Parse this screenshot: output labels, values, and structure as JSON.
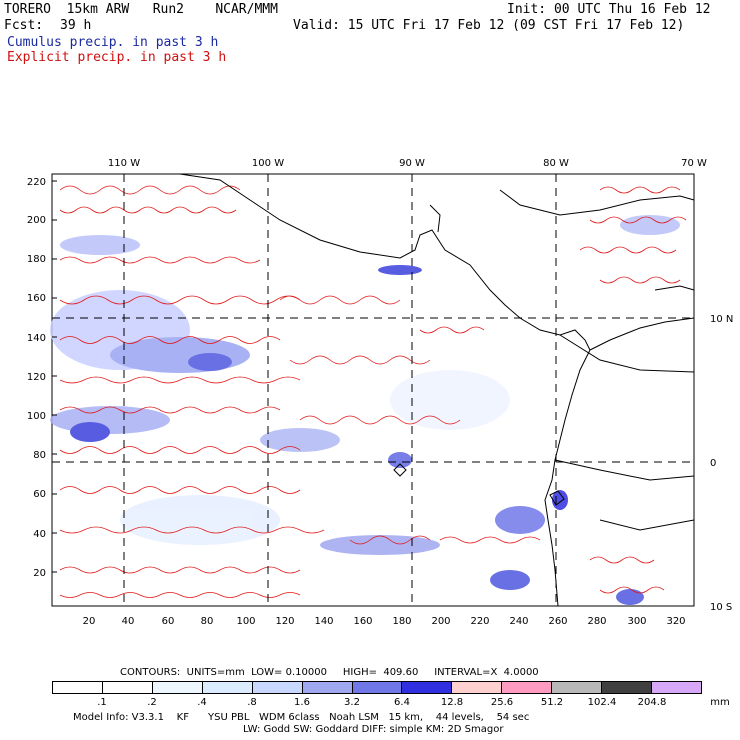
{
  "header": {
    "model": "TORERO  15km ARW   Run2    NCAR/MMM",
    "init": "Init: 00 UTC Thu 16 Feb 12",
    "fcst_label": "Fcst:",
    "fcst_value": "39 h",
    "valid": "Valid: 15 UTC Fri 17 Feb 12 (09 CST Fri 17 Feb 12)",
    "cumulus": "Cumulus precip. in past 3 h",
    "explicit": "Explicit precip. in past 3 h"
  },
  "map": {
    "lon_labels": [
      "110 W",
      "100 W",
      "90 W",
      "80 W",
      "70 W"
    ],
    "lat_labels": [
      "10 N",
      "0",
      "10 S"
    ],
    "y_ticks": [
      "220",
      "200",
      "180",
      "160",
      "140",
      "120",
      "100",
      "80",
      "60",
      "40",
      "20"
    ],
    "x_ticks": [
      "20",
      "40",
      "60",
      "80",
      "100",
      "120",
      "140",
      "160",
      "180",
      "200",
      "220",
      "240",
      "260",
      "280",
      "300",
      "320"
    ]
  },
  "contours": {
    "label": "CONTOURS:  UNITS=mm  LOW= 0.10000     HIGH=  409.60     INTERVAL=X  4.0000"
  },
  "colorbar": {
    "labels": [
      ".1",
      ".2",
      ".4",
      ".8",
      "1.6",
      "3.2",
      "6.4",
      "12.8",
      "25.6",
      "51.2",
      "102.4",
      "204.8"
    ],
    "units": "mm",
    "colors": [
      "#ffffff",
      "#ffffff",
      "#eef6ff",
      "#dcecff",
      "#c8d8ff",
      "#a0a8f0",
      "#7078e8",
      "#3030e0",
      "#ffd0d0",
      "#ff9ac0",
      "#b8b8b8",
      "#404040",
      "#d8a8f8"
    ]
  },
  "footer": {
    "line1": "Model Info: V3.3.1    KF      YSU PBL   WDM 6class   Noah LSM   15 km,    44 levels,    54 sec",
    "line2": "LW: Godd SW: Goddard DIFF: simple KM: 2D Smagor"
  }
}
